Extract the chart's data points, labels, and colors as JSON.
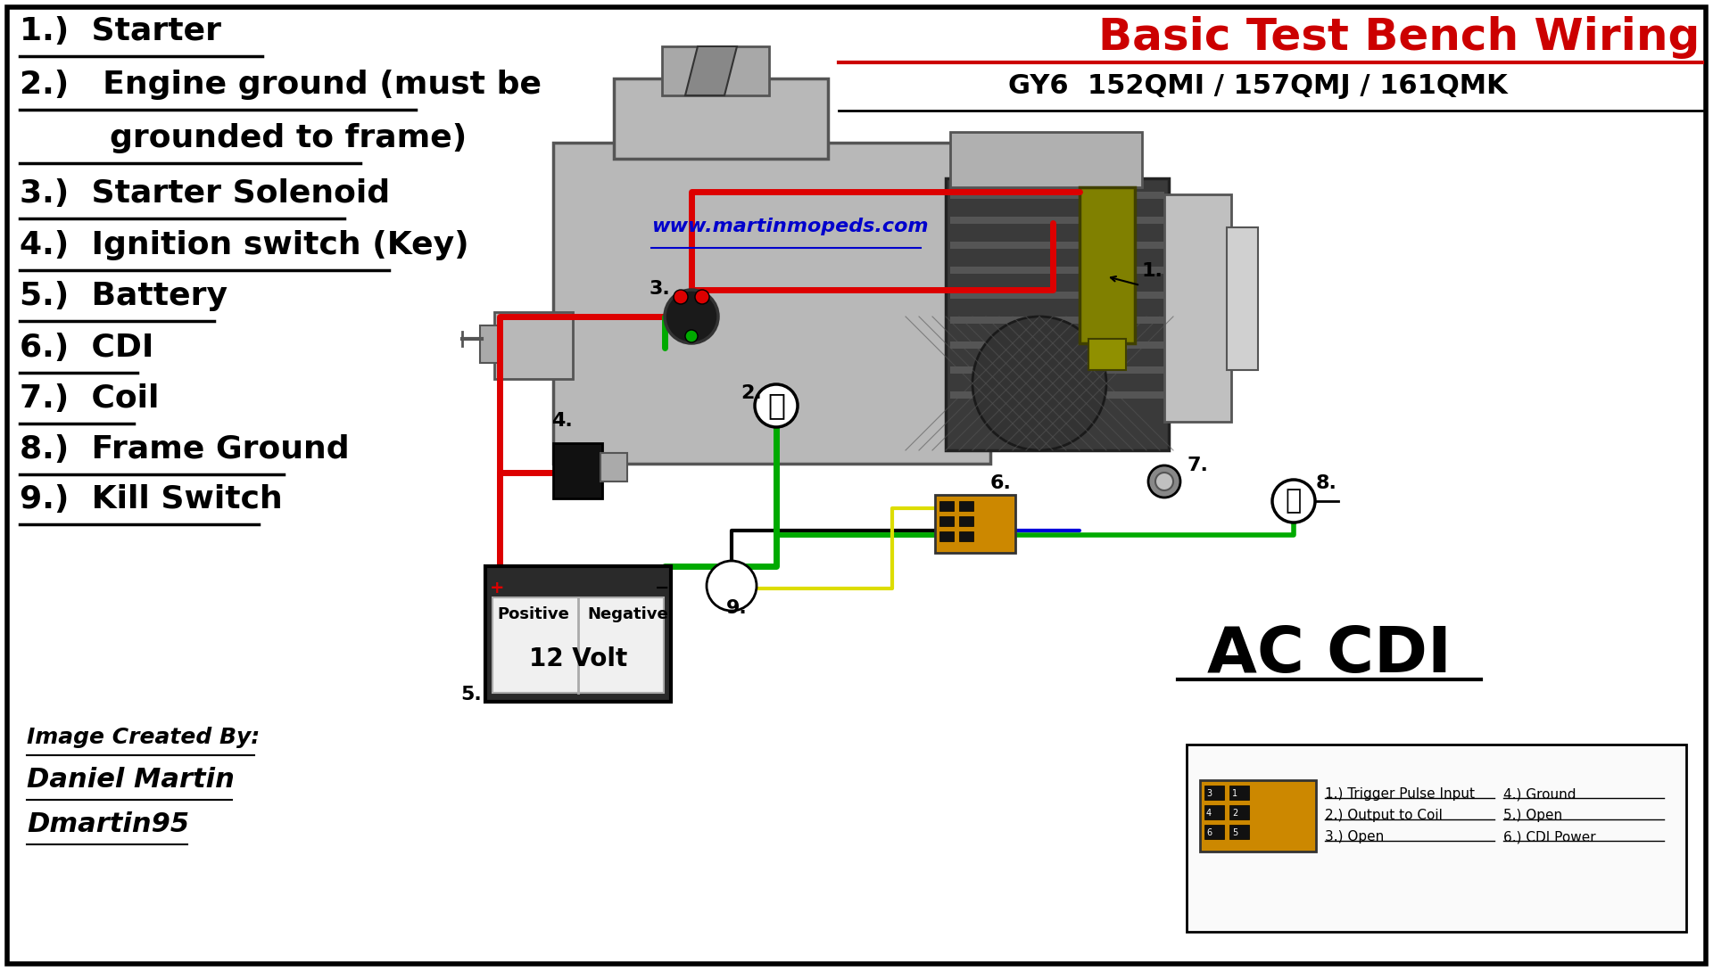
{
  "bg_color": "#ffffff",
  "border_color": "#000000",
  "title": "Basic Test Bench Wiring",
  "subtitle": "GY6  152QMI / 157QMJ / 161QMK",
  "title_color": "#cc0000",
  "website": "www.martinmopeds.com",
  "website_color": "#0000cc",
  "red": "#dd0000",
  "green": "#00aa00",
  "blue": "#0000dd",
  "dark_red": "#880000",
  "yellow_wire": "#dddd00",
  "dark_gray": "#555555",
  "mid_gray": "#999999",
  "light_gray": "#c0c0c0",
  "engine_gray": "#b8b8b8",
  "dark_engine": "#4a4a4a",
  "black": "#000000",
  "white": "#ffffff",
  "olive": "#808000",
  "olive2": "#9a9a00",
  "orange": "#cc8800",
  "battery_dark": "#2a2a2a",
  "ac_cdi": "AC CDI",
  "battery_label": "12 Volt",
  "battery_pos": "Positive",
  "battery_neg": "Negative",
  "credit1": "Image Created By:",
  "credit2": "Daniel Martin",
  "credit3": "Dmartin95",
  "cdi_legend1": "1.) Trigger Pulse Input    4.) Ground",
  "cdi_legend2": "2.) Output to Coil           5.) Open",
  "cdi_legend3": "3.) Open                         6.) CDI Power"
}
